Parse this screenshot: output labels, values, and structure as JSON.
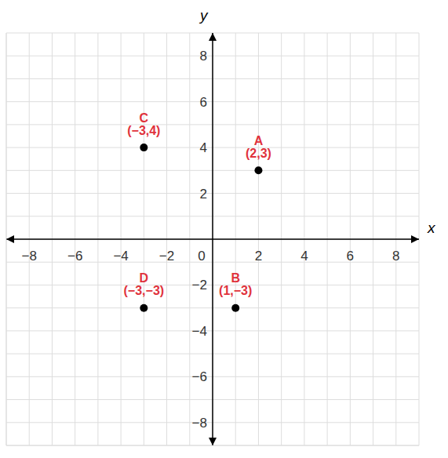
{
  "chart_data": {
    "type": "scatter",
    "x": [
      2,
      1,
      -3,
      -3
    ],
    "y": [
      3,
      -3,
      4,
      -3
    ],
    "labels": [
      "A (2,3)",
      "B (1,−3)",
      "C (−3,4)",
      "D (−3,−3)"
    ],
    "x_label": "x",
    "y_label": "y",
    "xlim": [
      -9,
      9
    ],
    "ylim": [
      -9,
      9
    ],
    "xticks": [
      {
        "value": -8,
        "label": "−8"
      },
      {
        "value": -6,
        "label": "−6"
      },
      {
        "value": -4,
        "label": "−4"
      },
      {
        "value": -2,
        "label": "−2"
      },
      0,
      2,
      4,
      6,
      8
    ],
    "yticks": [
      {
        "value": -8,
        "label": "−8"
      },
      {
        "value": -6,
        "label": "−6"
      },
      {
        "value": -4,
        "label": "−4"
      },
      {
        "value": -2,
        "label": "−2"
      },
      2,
      4,
      6,
      8
    ],
    "grid": true,
    "color": "#000000"
  }
}
